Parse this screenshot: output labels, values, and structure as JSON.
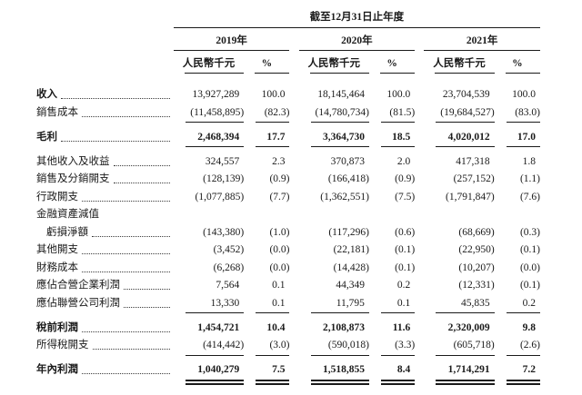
{
  "table": {
    "period_header": "截至12月31日止年度",
    "year_groups": [
      {
        "year": "2019年",
        "unit_label": "人民幣千元",
        "pct_label": "%"
      },
      {
        "year": "2020年",
        "unit_label": "人民幣千元",
        "pct_label": "%"
      },
      {
        "year": "2021年",
        "unit_label": "人民幣千元",
        "pct_label": "%"
      }
    ],
    "rows": [
      {
        "label": "收入",
        "bold_label": true,
        "bold_values": false,
        "leaders": true,
        "indent": false,
        "space_before": false,
        "rule": "none",
        "values": [
          "13,927,289",
          "100.0",
          "18,145,464",
          "100.0",
          "23,704,539",
          "100.0"
        ]
      },
      {
        "label": "銷售成本",
        "bold_label": false,
        "bold_values": false,
        "leaders": true,
        "indent": false,
        "space_before": false,
        "rule": "single",
        "values": [
          "(11,458,895)",
          "(82.3)",
          "(14,780,734)",
          "(81.5)",
          "(19,684,527)",
          "(83.0)"
        ]
      },
      {
        "label": "毛利",
        "bold_label": true,
        "bold_values": true,
        "leaders": true,
        "indent": false,
        "space_before": true,
        "rule": "single",
        "values": [
          "2,468,394",
          "17.7",
          "3,364,730",
          "18.5",
          "4,020,012",
          "17.0"
        ]
      },
      {
        "label": "其他收入及收益",
        "bold_label": false,
        "bold_values": false,
        "leaders": true,
        "indent": false,
        "space_before": true,
        "rule": "none",
        "values": [
          "324,557",
          "2.3",
          "370,873",
          "2.0",
          "417,318",
          "1.8"
        ]
      },
      {
        "label": "銷售及分銷開支",
        "bold_label": false,
        "bold_values": false,
        "leaders": true,
        "indent": false,
        "space_before": false,
        "rule": "none",
        "values": [
          "(128,139)",
          "(0.9)",
          "(166,418)",
          "(0.9)",
          "(257,152)",
          "(1.1)"
        ]
      },
      {
        "label": "行政開支",
        "bold_label": false,
        "bold_values": false,
        "leaders": true,
        "indent": false,
        "space_before": false,
        "rule": "none",
        "values": [
          "(1,077,885)",
          "(7.7)",
          "(1,362,551)",
          "(7.5)",
          "(1,791,847)",
          "(7.6)"
        ]
      },
      {
        "label": "金融資產減值",
        "bold_label": false,
        "bold_values": false,
        "leaders": false,
        "indent": false,
        "space_before": false,
        "rule": "none",
        "values": [
          "",
          "",
          "",
          "",
          "",
          ""
        ]
      },
      {
        "label": "虧損淨額",
        "bold_label": false,
        "bold_values": false,
        "leaders": true,
        "indent": true,
        "space_before": false,
        "rule": "none",
        "values": [
          "(143,380)",
          "(1.0)",
          "(117,296)",
          "(0.6)",
          "(68,669)",
          "(0.3)"
        ]
      },
      {
        "label": "其他開支",
        "bold_label": false,
        "bold_values": false,
        "leaders": true,
        "indent": false,
        "space_before": false,
        "rule": "none",
        "values": [
          "(3,452)",
          "(0.0)",
          "(22,181)",
          "(0.1)",
          "(22,950)",
          "(0.1)"
        ]
      },
      {
        "label": "財務成本",
        "bold_label": false,
        "bold_values": false,
        "leaders": true,
        "indent": false,
        "space_before": false,
        "rule": "none",
        "values": [
          "(6,268)",
          "(0.0)",
          "(14,428)",
          "(0.1)",
          "(10,207)",
          "(0.0)"
        ]
      },
      {
        "label": "應佔合營企業利潤",
        "bold_label": false,
        "bold_values": false,
        "leaders": true,
        "indent": false,
        "space_before": false,
        "rule": "none",
        "values": [
          "7,564",
          "0.1",
          "44,349",
          "0.2",
          "(12,331)",
          "(0.1)"
        ]
      },
      {
        "label": "應佔聯營公司利潤",
        "bold_label": false,
        "bold_values": false,
        "leaders": true,
        "indent": false,
        "space_before": false,
        "rule": "single",
        "values": [
          "13,330",
          "0.1",
          "11,795",
          "0.1",
          "45,835",
          "0.2"
        ]
      },
      {
        "label": "稅前利潤",
        "bold_label": true,
        "bold_values": true,
        "leaders": true,
        "indent": false,
        "space_before": true,
        "rule": "none",
        "values": [
          "1,454,721",
          "10.4",
          "2,108,873",
          "11.6",
          "2,320,009",
          "9.8"
        ]
      },
      {
        "label": "所得稅開支",
        "bold_label": false,
        "bold_values": false,
        "leaders": true,
        "indent": false,
        "space_before": false,
        "rule": "single",
        "values": [
          "(414,442)",
          "(3.0)",
          "(590,018)",
          "(3.3)",
          "(605,718)",
          "(2.6)"
        ]
      },
      {
        "label": "年內利潤",
        "bold_label": true,
        "bold_values": true,
        "leaders": true,
        "indent": false,
        "space_before": true,
        "rule": "double",
        "values": [
          "1,040,279",
          "7.5",
          "1,518,855",
          "8.4",
          "1,714,291",
          "7.2"
        ]
      }
    ]
  }
}
